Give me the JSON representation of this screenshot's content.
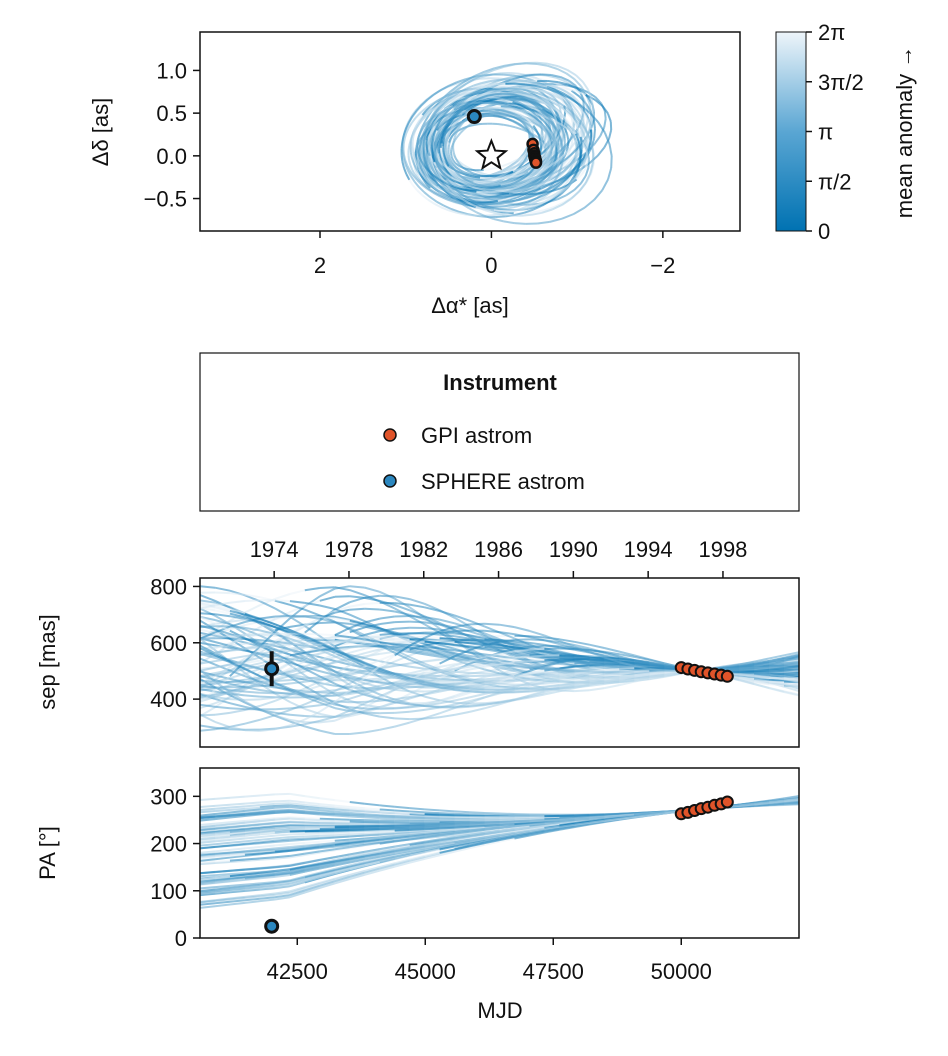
{
  "colors": {
    "gpi": "#e0542a",
    "sphere": "#2b87bf",
    "orbit_low": "#0072b2",
    "orbit_high": "#eef5fa",
    "marker_edge": "#111111"
  },
  "chart_data": [
    {
      "type": "line",
      "panel": "sky-plot",
      "xlabel": "Δα* [as]",
      "ylabel": "Δδ [as]",
      "xlim": [
        3.4,
        -2.9
      ],
      "ylim": [
        -0.88,
        1.45
      ],
      "x_axis_inverted": true,
      "xticks": [
        2,
        0,
        -2
      ],
      "xtick_labels": [
        "2",
        "0",
        "−2"
      ],
      "yticks": [
        1.0,
        0.5,
        0.0,
        -0.5
      ],
      "ytick_labels": [
        "1.0",
        "0.5",
        "0.0",
        "−0.5"
      ],
      "star": {
        "x": 0,
        "y": 0
      },
      "points": {
        "sphere": [
          {
            "x": 0.2,
            "y": 0.46
          }
        ],
        "gpi": [
          {
            "x": -0.48,
            "y": 0.14
          },
          {
            "x": -0.49,
            "y": 0.07
          },
          {
            "x": -0.5,
            "y": 0.03
          },
          {
            "x": -0.5,
            "y": 0.0
          },
          {
            "x": -0.51,
            "y": -0.02
          },
          {
            "x": -0.51,
            "y": -0.04
          },
          {
            "x": -0.52,
            "y": -0.06
          },
          {
            "x": -0.52,
            "y": -0.08
          }
        ]
      },
      "colorbar": {
        "label": "mean anomaly →",
        "ticks": [
          "0",
          "π/2",
          "π",
          "3π/2",
          "2π"
        ]
      },
      "grid": false
    },
    {
      "type": "legend",
      "title": "Instrument",
      "entries": [
        {
          "label": "GPI astrom",
          "color": "#e0542a"
        },
        {
          "label": "SPHERE astrom",
          "color": "#2b87bf"
        }
      ]
    },
    {
      "type": "line",
      "panel": "separation",
      "ylabel": "sep [mas]",
      "xlim": [
        40600,
        52300
      ],
      "ylim": [
        230,
        830
      ],
      "yticks": [
        800,
        600,
        400
      ],
      "ytick_labels": [
        "800",
        "600",
        "400"
      ],
      "top_axis": {
        "ticks": [
          1974,
          1978,
          1982,
          1986,
          1990,
          1994,
          1998
        ],
        "tick_labels": [
          "1974",
          "1978",
          "1982",
          "1986",
          "1990",
          "1994",
          "1998"
        ]
      },
      "points": {
        "sphere": [
          {
            "x": 42000,
            "y": 508,
            "err": 62
          }
        ],
        "gpi": [
          {
            "x": 50000,
            "y": 512
          },
          {
            "x": 50130,
            "y": 507
          },
          {
            "x": 50260,
            "y": 502
          },
          {
            "x": 50390,
            "y": 497
          },
          {
            "x": 50520,
            "y": 493
          },
          {
            "x": 50650,
            "y": 489
          },
          {
            "x": 50780,
            "y": 485
          },
          {
            "x": 50900,
            "y": 481
          }
        ]
      },
      "grid": false
    },
    {
      "type": "line",
      "panel": "position-angle",
      "xlabel": "MJD",
      "ylabel": "PA [°]",
      "xlim": [
        40600,
        52300
      ],
      "ylim": [
        0,
        360
      ],
      "xticks": [
        42500,
        45000,
        47500,
        50000
      ],
      "xtick_labels": [
        "42500",
        "45000",
        "47500",
        "50000"
      ],
      "yticks": [
        0,
        100,
        200,
        300
      ],
      "ytick_labels": [
        "0",
        "100",
        "200",
        "300"
      ],
      "points": {
        "sphere": [
          {
            "x": 42000,
            "y": 25
          }
        ],
        "gpi": [
          {
            "x": 50000,
            "y": 263
          },
          {
            "x": 50130,
            "y": 266
          },
          {
            "x": 50260,
            "y": 270
          },
          {
            "x": 50390,
            "y": 274
          },
          {
            "x": 50520,
            "y": 277
          },
          {
            "x": 50650,
            "y": 281
          },
          {
            "x": 50780,
            "y": 284
          },
          {
            "x": 50900,
            "y": 288
          }
        ]
      },
      "grid": false
    }
  ]
}
